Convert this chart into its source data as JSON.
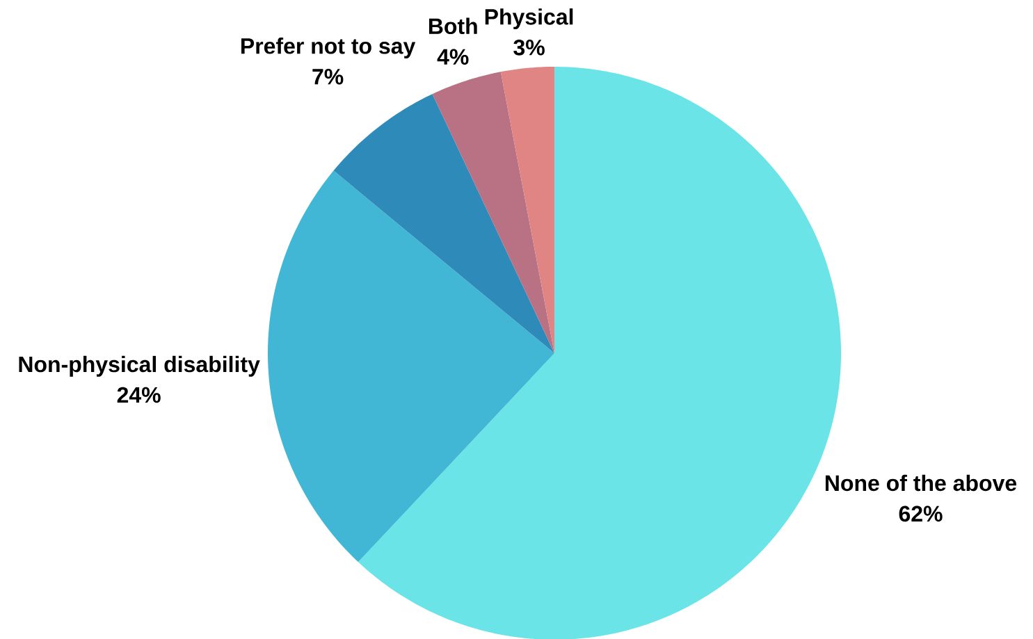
{
  "chart_data": {
    "type": "pie",
    "categories": [
      "None of the above",
      "Non-physical disability",
      "Prefer not to say",
      "Both",
      "Physical"
    ],
    "values": [
      62,
      24,
      7,
      4,
      3
    ],
    "value_labels": [
      "62%",
      "24%",
      "7%",
      "4%",
      "3%"
    ],
    "colors": [
      "#6be4e8",
      "#42b6d5",
      "#2e8ab8",
      "#b87283",
      "#e18484"
    ]
  }
}
